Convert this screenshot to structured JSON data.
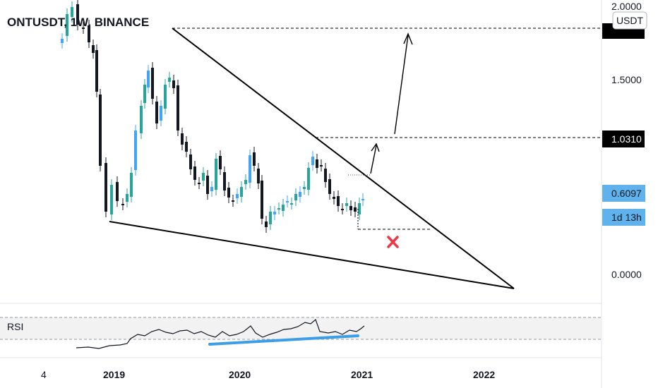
{
  "chart_data": {
    "type": "candlestick",
    "title": "ONTUSDT, 1W, BINANCE",
    "currency_label": "USDT",
    "price_axis": {
      "ticks": [
        {
          "value": 1.5,
          "label": "1.5000"
        },
        {
          "value": 0.0,
          "label": "0.0000"
        }
      ],
      "top_partial_label": "2.0000"
    },
    "price_tags": [
      {
        "label": "1.0310",
        "value": 1.031,
        "style": "dark"
      },
      {
        "label": "0.6097",
        "value": 0.6097,
        "style": "blue"
      },
      {
        "label": "1d 13h",
        "style": "blue-countdown"
      }
    ],
    "time_axis": [
      "4",
      "2019",
      "2020",
      "2021",
      "2022"
    ],
    "indicator": {
      "name": "RSI"
    },
    "colors": {
      "up": "#26a69a",
      "up_accent": "#42a5f5",
      "down": "#131722",
      "rsi_trend": "#3d9ee8",
      "invalid_mark": "#f23645",
      "tag_dark": "#000000",
      "tag_blue": "#5fb2ec"
    }
  }
}
